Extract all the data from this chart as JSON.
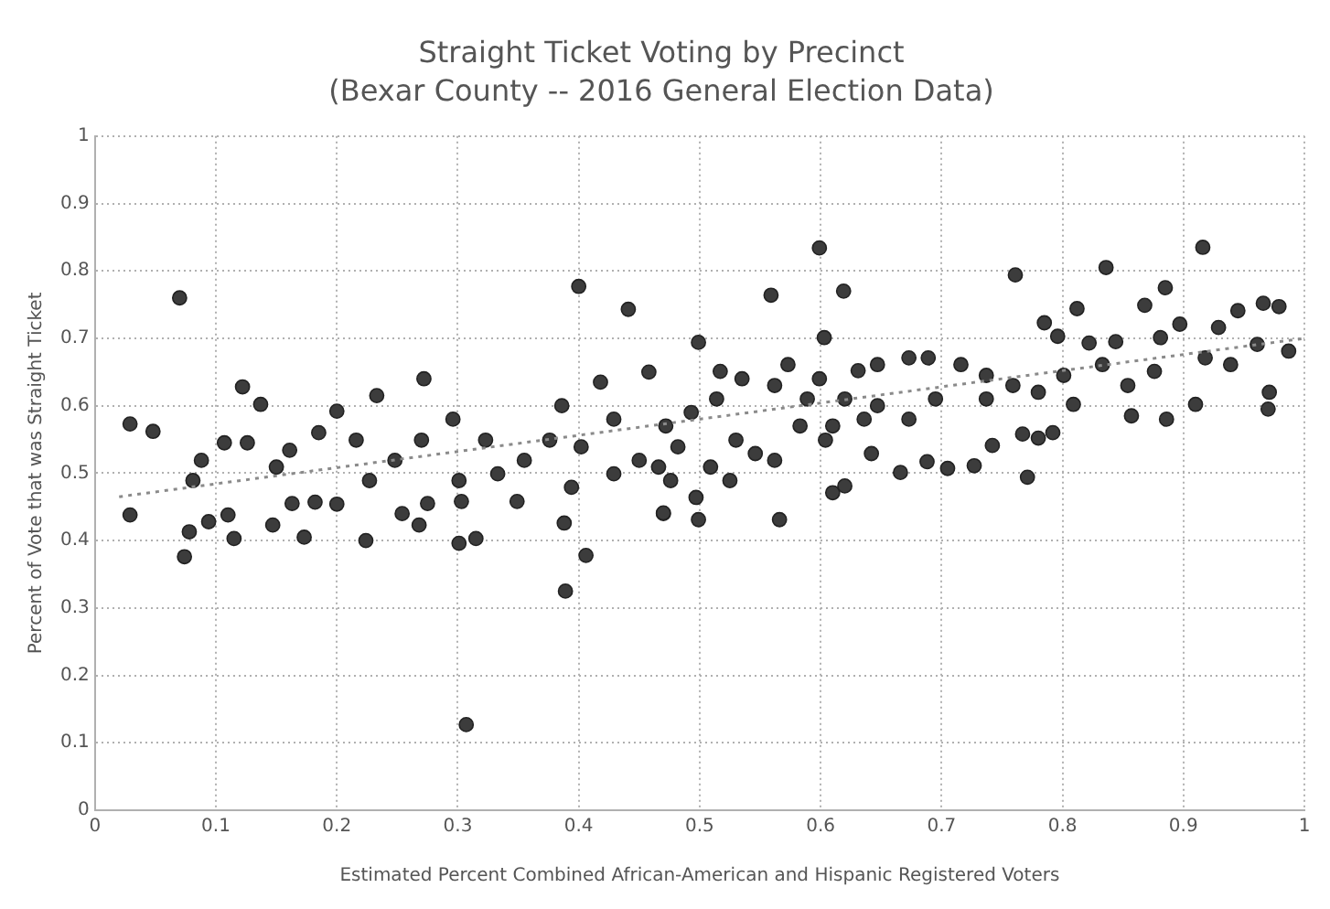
{
  "chart_data": {
    "type": "scatter",
    "title": "Straight Ticket Voting by Precinct",
    "subtitle": "(Bexar County -- 2016 General Election Data)",
    "xlabel": "Estimated Percent Combined African-American and Hispanic Registered Voters",
    "ylabel": "Percent of Vote that was Straight Ticket",
    "xlim": [
      0,
      1
    ],
    "ylim": [
      0,
      1
    ],
    "xticks": [
      0,
      0.1,
      0.2,
      0.3,
      0.4,
      0.5,
      0.6,
      0.7,
      0.8,
      0.9,
      1
    ],
    "yticks": [
      0,
      0.1,
      0.2,
      0.3,
      0.4,
      0.5,
      0.6,
      0.7,
      0.8,
      0.9,
      1
    ],
    "grid": true,
    "legend": false,
    "marker": "circle",
    "series": [
      {
        "color": "#3c3c3c",
        "x": [
          0.07,
          0.029,
          0.048,
          0.029,
          0.074,
          0.078,
          0.094,
          0.122,
          0.137,
          0.115,
          0.173,
          0.224,
          0.2,
          0.233,
          0.272,
          0.307,
          0.301,
          0.315,
          0.303,
          0.389,
          0.388,
          0.406,
          0.4,
          0.441,
          0.47,
          0.254,
          0.268,
          0.275,
          0.182,
          0.2,
          0.163,
          0.088,
          0.081,
          0.107,
          0.126,
          0.15,
          0.161,
          0.11,
          0.147,
          0.185,
          0.216,
          0.227,
          0.248,
          0.27,
          0.296,
          0.323,
          0.333,
          0.349,
          0.355,
          0.376,
          0.386,
          0.402,
          0.394,
          0.429,
          0.418,
          0.458,
          0.45,
          0.429,
          0.301,
          0.599,
          0.559,
          0.619,
          0.499,
          0.603,
          0.761,
          0.836,
          0.916,
          0.885,
          0.868,
          0.812,
          0.785,
          0.796,
          0.822,
          0.844,
          0.566,
          0.499,
          0.47,
          0.497,
          0.61,
          0.62,
          0.771,
          0.666,
          0.688,
          0.705,
          0.727,
          0.742,
          0.767,
          0.78,
          0.792,
          0.809,
          0.857,
          0.886,
          0.91,
          0.97,
          0.971,
          0.987,
          0.979,
          0.966,
          0.945,
          0.929,
          0.961,
          0.939,
          0.918,
          0.897,
          0.881,
          0.876,
          0.854,
          0.833,
          0.801,
          0.78,
          0.759,
          0.737,
          0.716,
          0.737,
          0.689,
          0.673,
          0.647,
          0.631,
          0.695,
          0.673,
          0.647,
          0.62,
          0.599,
          0.573,
          0.562,
          0.589,
          0.61,
          0.636,
          0.642,
          0.604,
          0.583,
          0.546,
          0.562,
          0.535,
          0.517,
          0.514,
          0.493,
          0.472,
          0.482,
          0.509,
          0.53,
          0.525,
          0.466,
          0.476
        ],
        "values": [
          0.76,
          0.573,
          0.562,
          0.438,
          0.376,
          0.413,
          0.428,
          0.628,
          0.602,
          0.403,
          0.405,
          0.4,
          0.592,
          0.615,
          0.64,
          0.127,
          0.396,
          0.403,
          0.458,
          0.325,
          0.426,
          0.378,
          0.777,
          0.743,
          0.44,
          0.44,
          0.423,
          0.455,
          0.457,
          0.454,
          0.455,
          0.519,
          0.489,
          0.545,
          0.545,
          0.509,
          0.534,
          0.438,
          0.423,
          0.56,
          0.549,
          0.489,
          0.519,
          0.549,
          0.58,
          0.549,
          0.499,
          0.458,
          0.519,
          0.549,
          0.6,
          0.539,
          0.479,
          0.58,
          0.635,
          0.65,
          0.519,
          0.499,
          0.489,
          0.834,
          0.764,
          0.77,
          0.694,
          0.701,
          0.794,
          0.805,
          0.835,
          0.775,
          0.749,
          0.744,
          0.723,
          0.703,
          0.693,
          0.695,
          0.431,
          0.431,
          0.441,
          0.464,
          0.471,
          0.481,
          0.494,
          0.501,
          0.517,
          0.507,
          0.511,
          0.541,
          0.558,
          0.552,
          0.56,
          0.602,
          0.585,
          0.58,
          0.602,
          0.595,
          0.62,
          0.681,
          0.747,
          0.752,
          0.741,
          0.716,
          0.691,
          0.661,
          0.671,
          0.721,
          0.701,
          0.651,
          0.63,
          0.661,
          0.645,
          0.62,
          0.63,
          0.645,
          0.661,
          0.61,
          0.671,
          0.671,
          0.661,
          0.652,
          0.61,
          0.58,
          0.6,
          0.61,
          0.64,
          0.661,
          0.63,
          0.61,
          0.57,
          0.58,
          0.529,
          0.549,
          0.57,
          0.529,
          0.519,
          0.64,
          0.651,
          0.61,
          0.59,
          0.57,
          0.539,
          0.509,
          0.549,
          0.489,
          0.509,
          0.489
        ]
      },
      {
        "type": "line",
        "color": "#8a8a8a",
        "line_style": "dotted",
        "marker": "none",
        "x": [
          0.02,
          1
        ],
        "values": [
          0.465,
          0.7
        ]
      }
    ]
  }
}
